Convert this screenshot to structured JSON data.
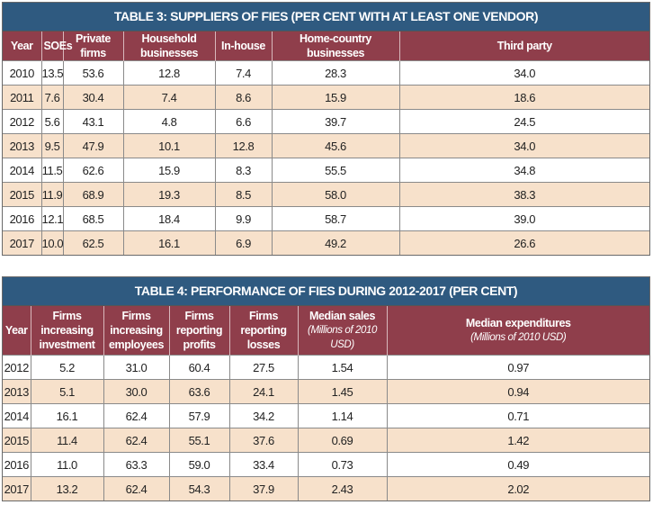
{
  "table3": {
    "title": "TABLE 3: SUPPLIERS OF FIES (PER CENT WITH AT LEAST ONE VENDOR)",
    "columns": [
      "Year",
      "SOEs",
      "Private firms",
      "Household businesses",
      "In-house",
      "Home-country businesses",
      "Third party"
    ],
    "rows": [
      [
        "2010",
        "13.5",
        "53.6",
        "12.8",
        "7.4",
        "28.3",
        "34.0"
      ],
      [
        "2011",
        "7.6",
        "30.4",
        "7.4",
        "8.6",
        "15.9",
        "18.6"
      ],
      [
        "2012",
        "5.6",
        "43.1",
        "4.8",
        "6.6",
        "39.7",
        "24.5"
      ],
      [
        "2013",
        "9.5",
        "47.9",
        "10.1",
        "12.8",
        "45.6",
        "34.0"
      ],
      [
        "2014",
        "11.5",
        "62.6",
        "15.9",
        "8.3",
        "55.5",
        "34.8"
      ],
      [
        "2015",
        "11.9",
        "68.9",
        "19.3",
        "8.5",
        "58.0",
        "38.3"
      ],
      [
        "2016",
        "12.1",
        "68.5",
        "18.4",
        "9.9",
        "58.7",
        "39.0"
      ],
      [
        "2017",
        "10.0",
        "62.5",
        "16.1",
        "6.9",
        "49.2",
        "26.6"
      ]
    ]
  },
  "table4": {
    "title": "TABLE 4: PERFORMANCE OF FIES DURING 2012-2017 (PER CENT)",
    "columns": [
      {
        "label": "Year",
        "sub": ""
      },
      {
        "label": "Firms increasing investment",
        "sub": ""
      },
      {
        "label": "Firms increasing employees",
        "sub": ""
      },
      {
        "label": "Firms reporting profits",
        "sub": ""
      },
      {
        "label": "Firms reporting losses",
        "sub": ""
      },
      {
        "label": "Median sales",
        "sub": "(Millions of 2010 USD)"
      },
      {
        "label": "Median expenditures",
        "sub": "(Millions of 2010 USD)"
      }
    ],
    "rows": [
      [
        "2012",
        "5.2",
        "31.0",
        "60.4",
        "27.5",
        "1.54",
        "0.97"
      ],
      [
        "2013",
        "5.1",
        "30.0",
        "63.6",
        "24.1",
        "1.45",
        "0.94"
      ],
      [
        "2014",
        "16.1",
        "62.4",
        "57.9",
        "34.2",
        "1.14",
        "0.71"
      ],
      [
        "2015",
        "11.4",
        "62.4",
        "55.1",
        "37.6",
        "0.69",
        "1.42"
      ],
      [
        "2016",
        "11.0",
        "63.3",
        "59.0",
        "33.4",
        "0.73",
        "0.49"
      ],
      [
        "2017",
        "13.2",
        "62.4",
        "54.3",
        "37.9",
        "2.43",
        "2.02"
      ]
    ]
  }
}
